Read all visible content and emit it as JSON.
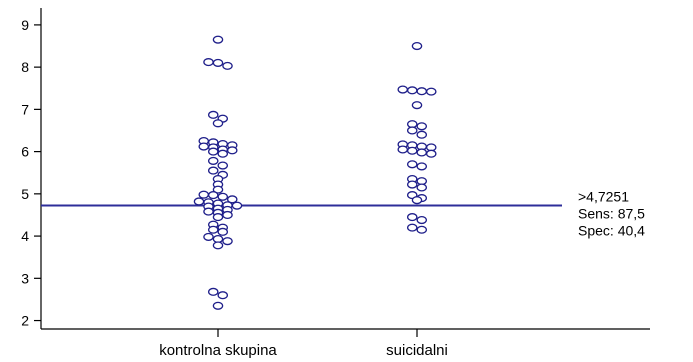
{
  "chart_data": {
    "type": "scatter",
    "title": "",
    "xlabel": "",
    "ylabel": "",
    "ylim": [
      1.8,
      9.4
    ],
    "yticks": [
      2,
      3,
      4,
      5,
      6,
      7,
      8,
      9
    ],
    "categories": [
      "kontrolna skupina",
      "suicidalni"
    ],
    "series": [
      {
        "values": [
          8.65,
          8.12,
          8.1,
          8.03,
          6.87,
          6.78,
          6.67,
          6.25,
          6.22,
          6.18,
          6.15,
          6.12,
          6.1,
          6.05,
          6.03,
          6.0,
          5.95,
          5.78,
          5.67,
          5.55,
          5.45,
          5.35,
          5.22,
          5.1,
          4.98,
          4.97,
          4.93,
          4.87,
          4.82,
          4.8,
          4.77,
          4.73,
          4.72,
          4.7,
          4.65,
          4.62,
          4.58,
          4.55,
          4.5,
          4.45,
          4.27,
          4.2,
          4.15,
          4.1,
          3.98,
          3.93,
          3.88,
          3.78,
          2.68,
          2.6,
          2.35
        ],
        "color": "#1f1f8a"
      },
      {
        "values": [
          8.5,
          7.47,
          7.45,
          7.43,
          7.42,
          7.1,
          6.65,
          6.6,
          6.5,
          6.4,
          6.17,
          6.15,
          6.12,
          6.1,
          6.05,
          6.02,
          5.98,
          5.95,
          5.7,
          5.65,
          5.35,
          5.3,
          5.22,
          5.15,
          4.97,
          4.9,
          4.85,
          4.45,
          4.38,
          4.2,
          4.15
        ],
        "color": "#1f1f8a"
      }
    ],
    "cutoff": {
      "value": 4.7251,
      "color": "#2e2e9a",
      "labels": [
        ">4,7251",
        "Sens: 87,5",
        "Spec: 40,4"
      ]
    }
  }
}
